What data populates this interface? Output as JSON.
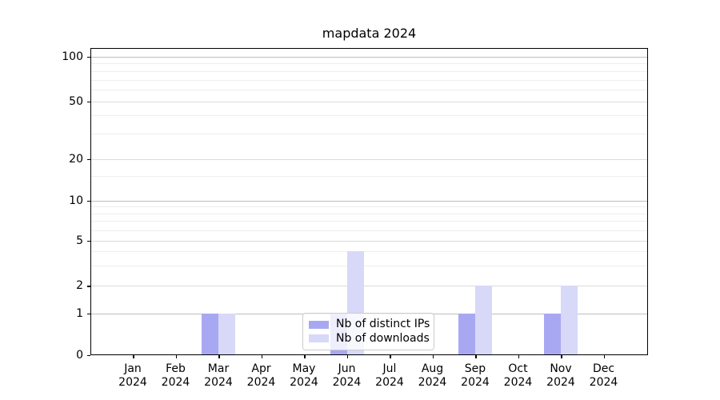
{
  "chart_data": {
    "type": "bar",
    "title": "mapdata 2024",
    "categories": [
      "Jan",
      "Feb",
      "Mar",
      "Apr",
      "May",
      "Jun",
      "Jul",
      "Aug",
      "Sep",
      "Oct",
      "Nov",
      "Dec"
    ],
    "year_label": "2024",
    "series": [
      {
        "name": "Nb of distinct IPs",
        "color": "#a8a8f2",
        "values": [
          0,
          0,
          1,
          0,
          0,
          1,
          0,
          0,
          1,
          0,
          1,
          0
        ]
      },
      {
        "name": "Nb of downloads",
        "color": "#d8d8f8",
        "values": [
          0,
          0,
          1,
          0,
          0,
          4,
          0,
          0,
          2,
          0,
          2,
          0
        ]
      }
    ],
    "y_ticks": [
      0,
      1,
      2,
      5,
      10,
      20,
      50,
      100
    ],
    "y_scale": "log",
    "ylim": [
      0,
      113
    ],
    "grid": true,
    "legend_position": "lower center"
  }
}
